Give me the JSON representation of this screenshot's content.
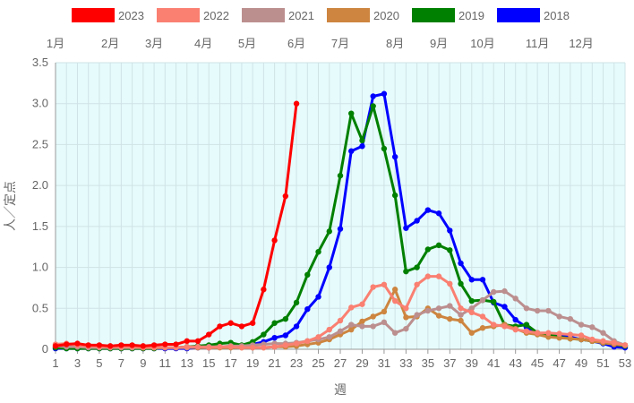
{
  "chart_data": {
    "type": "line",
    "xlabel": "週",
    "ylabel": "人／定点",
    "xlim": [
      1,
      53
    ],
    "ylim": [
      0,
      3.5
    ],
    "x_ticks": [
      1,
      3,
      5,
      7,
      9,
      11,
      13,
      15,
      17,
      19,
      21,
      23,
      25,
      27,
      29,
      31,
      33,
      35,
      37,
      39,
      41,
      43,
      45,
      47,
      49,
      51,
      53
    ],
    "y_ticks": [
      0,
      0.5,
      1.0,
      1.5,
      2.0,
      2.5,
      3.0,
      3.5
    ],
    "y_tick_labels": [
      "0",
      "0.5",
      "1.0",
      "1.5",
      "2.0",
      "2.5",
      "3.0",
      "3.5"
    ],
    "month_labels": [
      {
        "label": "1月",
        "week": 1
      },
      {
        "label": "2月",
        "week": 6
      },
      {
        "label": "3月",
        "week": 10
      },
      {
        "label": "4月",
        "week": 14.5
      },
      {
        "label": "5月",
        "week": 18.5
      },
      {
        "label": "6月",
        "week": 23
      },
      {
        "label": "7月",
        "week": 27
      },
      {
        "label": "8月",
        "week": 32
      },
      {
        "label": "9月",
        "week": 36
      },
      {
        "label": "10月",
        "week": 40
      },
      {
        "label": "11月",
        "week": 45
      },
      {
        "label": "12月",
        "week": 49
      }
    ],
    "legend_position": "top",
    "grid": true,
    "plot_background": "#e6fbfc",
    "series": [
      {
        "name": "2023",
        "color": "#ff0000",
        "values": [
          0.04,
          0.06,
          0.07,
          0.05,
          0.05,
          0.04,
          0.05,
          0.05,
          0.04,
          0.05,
          0.06,
          0.06,
          0.1,
          0.1,
          0.18,
          0.28,
          0.32,
          0.28,
          0.32,
          0.73,
          1.33,
          1.87,
          3.0
        ]
      },
      {
        "name": "2022",
        "color": "#fa8072",
        "values": [
          0.06,
          0.07,
          0.05,
          0.04,
          0.03,
          0.03,
          0.03,
          0.03,
          0.02,
          0.02,
          0.02,
          0.02,
          0.03,
          0.03,
          0.02,
          0.03,
          0.03,
          0.02,
          0.02,
          0.02,
          0.03,
          0.05,
          0.07,
          0.1,
          0.15,
          0.24,
          0.35,
          0.51,
          0.55,
          0.76,
          0.79,
          0.59,
          0.5,
          0.79,
          0.89,
          0.89,
          0.8,
          0.5,
          0.45,
          0.4,
          0.3,
          0.28,
          0.24,
          0.22,
          0.2,
          0.2,
          0.19,
          0.18,
          0.17,
          0.12,
          0.1,
          0.08,
          0.05
        ]
      },
      {
        "name": "2021",
        "color": "#bc8f8f",
        "values": [
          0.04,
          0.03,
          0.03,
          0.02,
          0.02,
          0.02,
          0.02,
          0.02,
          0.02,
          0.02,
          0.02,
          0.02,
          0.02,
          0.03,
          0.03,
          0.03,
          0.04,
          0.04,
          0.05,
          0.06,
          0.07,
          0.07,
          0.08,
          0.1,
          0.12,
          0.15,
          0.22,
          0.3,
          0.28,
          0.28,
          0.33,
          0.2,
          0.25,
          0.42,
          0.47,
          0.5,
          0.53,
          0.42,
          0.5,
          0.6,
          0.7,
          0.71,
          0.62,
          0.5,
          0.47,
          0.47,
          0.4,
          0.37,
          0.3,
          0.27,
          0.2,
          0.1,
          0.05
        ]
      },
      {
        "name": "2020",
        "color": "#cd853f",
        "values": [
          0.05,
          0.04,
          0.04,
          0.03,
          0.03,
          0.02,
          0.02,
          0.02,
          0.02,
          0.02,
          0.02,
          0.02,
          0.02,
          0.02,
          0.02,
          0.02,
          0.02,
          0.02,
          0.02,
          0.02,
          0.03,
          0.03,
          0.04,
          0.06,
          0.08,
          0.12,
          0.18,
          0.24,
          0.34,
          0.4,
          0.46,
          0.73,
          0.39,
          0.4,
          0.5,
          0.41,
          0.37,
          0.35,
          0.2,
          0.26,
          0.28,
          0.3,
          0.25,
          0.2,
          0.18,
          0.15,
          0.14,
          0.13,
          0.12,
          0.1,
          0.08,
          0.06,
          0.05
        ]
      },
      {
        "name": "2019",
        "color": "#008000",
        "values": [
          0.02,
          0.01,
          0.01,
          0.01,
          0.01,
          0.01,
          0.01,
          0.01,
          0.01,
          0.01,
          0.02,
          0.02,
          0.03,
          0.04,
          0.05,
          0.07,
          0.08,
          0.05,
          0.09,
          0.18,
          0.32,
          0.37,
          0.57,
          0.91,
          1.19,
          1.44,
          2.12,
          2.88,
          2.55,
          2.97,
          2.45,
          1.88,
          0.95,
          1.0,
          1.22,
          1.27,
          1.21,
          0.8,
          0.59,
          0.6,
          0.58,
          0.3,
          0.28,
          0.3,
          0.2,
          0.18,
          0.15,
          0.13,
          0.12,
          0.1,
          0.08,
          0.06,
          0.04
        ]
      },
      {
        "name": "2018",
        "color": "#0000ff",
        "values": [
          0.01,
          0.01,
          0.01,
          0.01,
          0.01,
          0.01,
          0.01,
          0.01,
          0.01,
          0.01,
          0.01,
          0.01,
          0.01,
          0.02,
          0.02,
          0.03,
          0.03,
          0.04,
          0.06,
          0.09,
          0.14,
          0.17,
          0.28,
          0.49,
          0.64,
          1.0,
          1.47,
          2.42,
          2.48,
          3.09,
          3.12,
          2.35,
          1.48,
          1.57,
          1.7,
          1.66,
          1.45,
          1.05,
          0.85,
          0.85,
          0.57,
          0.52,
          0.36,
          0.27,
          0.2,
          0.18,
          0.17,
          0.15,
          0.12,
          0.1,
          0.07,
          0.03,
          0.02
        ]
      }
    ]
  }
}
